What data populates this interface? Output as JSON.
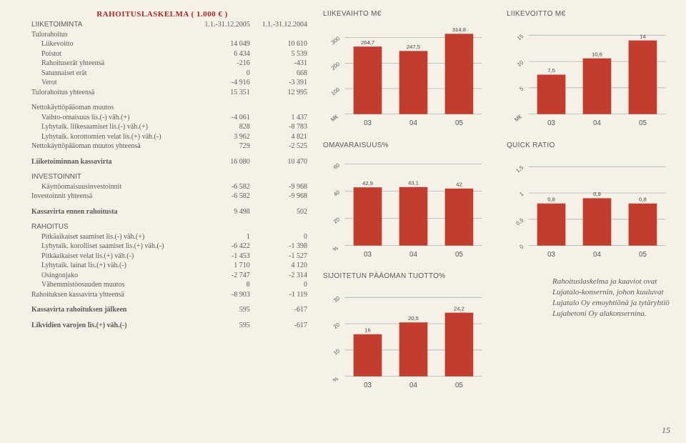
{
  "title": "RAHOITUSLASKELMA ( 1.000 € )",
  "colheads": [
    "1.1.-31.12.2005",
    "1.1.-31.12.2004"
  ],
  "sections": {
    "liiketoiminta": "LIIKETOIMINTA",
    "tulorahoitus": "Tulorahoitus",
    "investoinnit": "INVESTOINNIT",
    "rahoitus": "RAHOITUS"
  },
  "rows": {
    "liikevoitto": {
      "l": "Liikevoitto",
      "a": "14 049",
      "b": "10 610"
    },
    "poistot": {
      "l": "Poistot",
      "a": "6 434",
      "b": "5 539"
    },
    "rahoituserat": {
      "l": "Rahoituserät yhteensä",
      "a": "-216",
      "b": "-431"
    },
    "satunnaiset": {
      "l": "Satunnaiset erät",
      "a": "0",
      "b": "668"
    },
    "verot": {
      "l": "Verot",
      "a": "-4 916",
      "b": "-3 391"
    },
    "tulorahoitus_yht": {
      "l": "Tulorahoitus yhteensä",
      "a": "15 351",
      "b": "12 995"
    },
    "netto_muutos": {
      "l": "Nettokäyttöpääoman muutos"
    },
    "vaihto": {
      "l": "Vaihto-omaisuus lis.(-) väh.(+)",
      "a": "-4 061",
      "b": "1 437"
    },
    "liikesaam": {
      "l": "Lyhytaik. liikesaamiset lis.(-) väh.(+)",
      "a": "828",
      "b": "-8 783"
    },
    "korottomat": {
      "l": "Lyhytaik. korottomien velat lis.(+) väh.(-)",
      "a": "3 962",
      "b": "4 821"
    },
    "netto_yht": {
      "l": "Nettokäyttöpääoman muutos yhteensä",
      "a": "729",
      "b": "-2 525"
    },
    "liikekassa": {
      "l": "Liiketoiminnan kassavirta",
      "a": "16 080",
      "b": "10 470"
    },
    "kayttoinv": {
      "l": "Käyttöomaisuusinvestoinnit",
      "a": "-6 582",
      "b": "-9 968"
    },
    "inv_yht": {
      "l": "Investoinnit yhteensä",
      "a": "-6 582",
      "b": "-9 968"
    },
    "kassa_ennen": {
      "l": "Kassavirta ennen rahoitusta",
      "a": "9 498",
      "b": "502"
    },
    "pitka_saam": {
      "l": "Pitkäaikaiset saamiset lis.(-) väh.(+)",
      "a": "1",
      "b": "0"
    },
    "korol_saam": {
      "l": "Lyhytaik. korolliset saamiset lis.(+) väh.(-)",
      "a": "-6 422",
      "b": "-1 398"
    },
    "pitka_velat": {
      "l": "Pitkäaikaiset velat lis.(+) väh.(-)",
      "a": "-1 453",
      "b": "-1 527"
    },
    "lainat": {
      "l": "Lyhytaik. lainat lis.(+) väh.(-)",
      "a": "1 710",
      "b": "4 120"
    },
    "osingonjako": {
      "l": "Osingonjako",
      "a": "-2 747",
      "b": "-2 314"
    },
    "vahemmisto": {
      "l": "Vähemmistöosuuden muutos",
      "a": "8",
      "b": "0"
    },
    "rah_yht": {
      "l": "Rahoituksen kassavirta yhteensä",
      "a": "-8 903",
      "b": "-1 119"
    },
    "kassa_jalkeen": {
      "l": "Kassavirta rahoituksen jälkeen",
      "a": "595",
      "b": "-617"
    },
    "likvidit": {
      "l": "Likvidien varojen lis.(+) väh.(-)",
      "a": "595",
      "b": "-617"
    }
  },
  "charts": {
    "liikevaihto": {
      "title": "LIIKEVAIHTO M€",
      "type": "bar",
      "cats": [
        "03",
        "04",
        "05"
      ],
      "vals": [
        264.7,
        247.5,
        314.8
      ],
      "yticks": [
        100,
        200,
        300
      ],
      "ylim": [
        0,
        330
      ],
      "unit": "M€",
      "bar_color": "#c43c2e",
      "bg": "#f5f1e6",
      "grid": "#9aa0a6"
    },
    "liikevoitto": {
      "title": "LIIKEVOITTO M€",
      "type": "bar",
      "cats": [
        "03",
        "04",
        "05"
      ],
      "vals": [
        7.5,
        10.6,
        14.0
      ],
      "yticks": [
        5,
        10,
        15
      ],
      "ylim": [
        0,
        16
      ],
      "unit": "M€",
      "bar_color": "#c43c2e"
    },
    "omavaraisuus": {
      "title": "OMAVARAISUUS%",
      "type": "bar",
      "cats": [
        "03",
        "04",
        "05"
      ],
      "vals": [
        42.9,
        43.1,
        42.0
      ],
      "yticks": [
        20,
        40,
        60
      ],
      "ylim": [
        0,
        62
      ],
      "unit": "%",
      "bar_color": "#c43c2e"
    },
    "quickratio": {
      "title": "QUICK RATIO",
      "type": "bar",
      "cats": [
        "03",
        "04",
        "05"
      ],
      "vals": [
        0.8,
        0.9,
        0.8
      ],
      "yticks": [
        0.0,
        0.5,
        1.0,
        1.5
      ],
      "ylim": [
        0,
        1.6
      ],
      "unit": "",
      "bar_color": "#c43c2e"
    },
    "sijoitetun": {
      "title": "SIJOITETUN PÄÄOMAN TUOTTO%",
      "type": "bar",
      "cats": [
        "03",
        "04",
        "05"
      ],
      "vals": [
        16.0,
        20.5,
        24.2
      ],
      "yticks": [
        10,
        20,
        30
      ],
      "ylim": [
        0,
        32
      ],
      "unit": "%",
      "bar_color": "#c43c2e"
    }
  },
  "note": "Rahoituslaskelma ja kaaviot ovat Lujatalo-konsernin, johon kuuluvat Lujatalo Oy emoyhtiönä ja tytäryhtiö Lujabetoni Oy alakonsernina.",
  "pagenum": "15"
}
